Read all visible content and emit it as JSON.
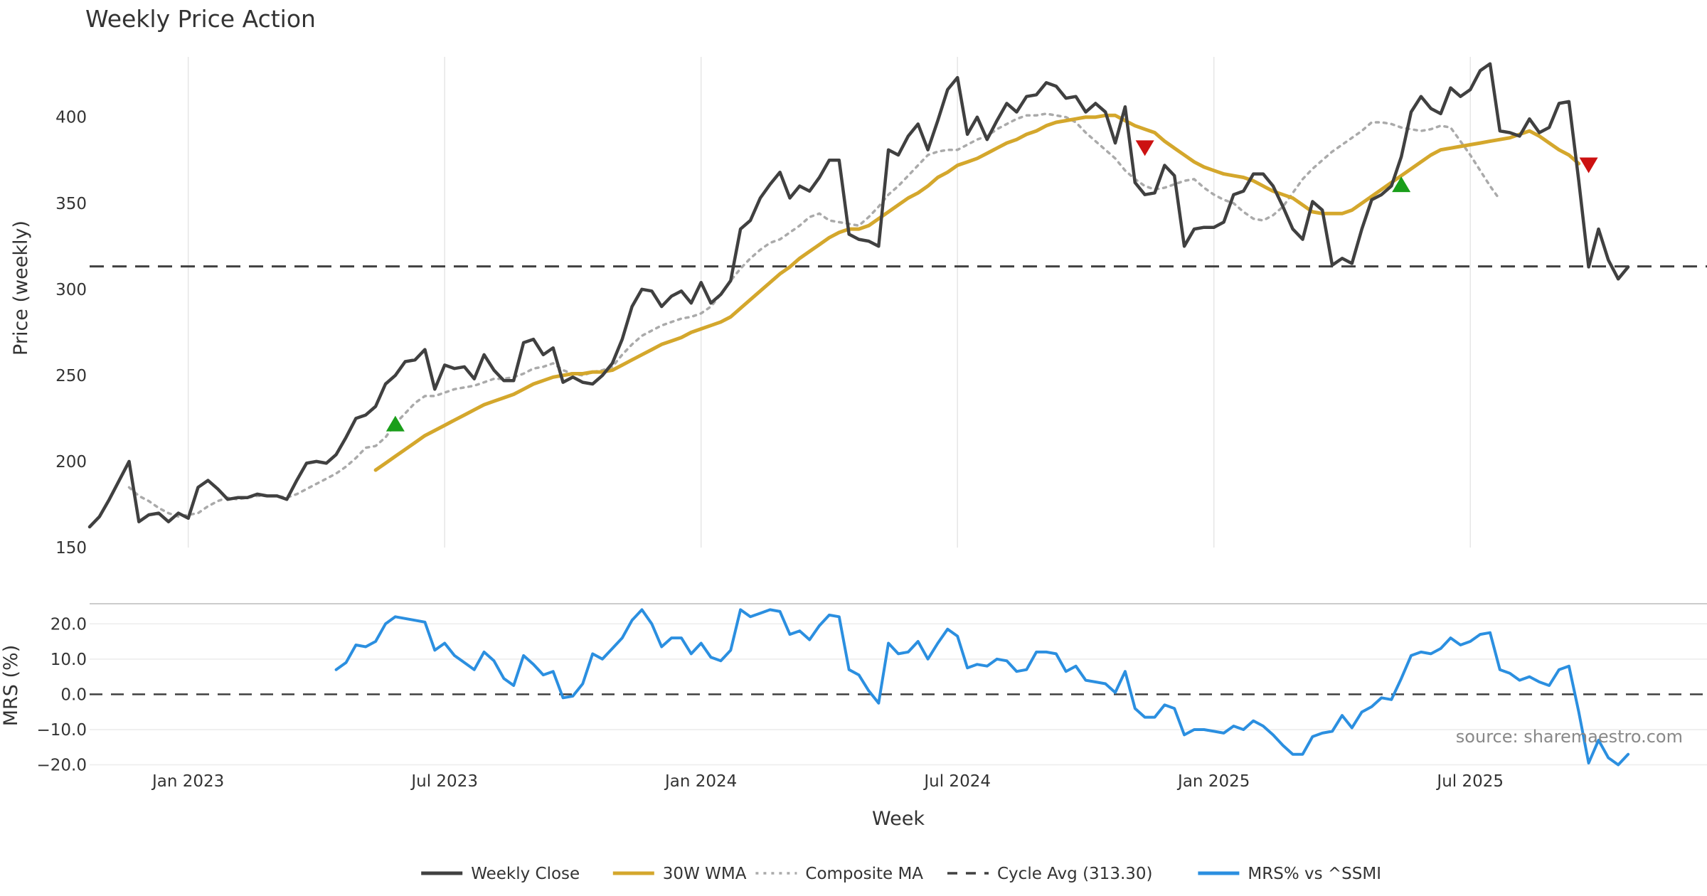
{
  "chart_data": {
    "type": "line",
    "title": "Weekly Price Action",
    "xlabel": "Week",
    "x_start_week": 0,
    "x_end_week": 164,
    "x_ticks": [
      {
        "label": "Jan 2023",
        "week": 10
      },
      {
        "label": "Jul 2023",
        "week": 36
      },
      {
        "label": "Jan 2024",
        "week": 62
      },
      {
        "label": "Jul 2024",
        "week": 88
      },
      {
        "label": "Jan 2025",
        "week": 114
      },
      {
        "label": "Jul 2025",
        "week": 140
      }
    ],
    "panels": [
      {
        "id": "price",
        "ylabel": "Price (weekly)",
        "ylim": [
          150,
          435
        ],
        "yticks": [
          150,
          200,
          250,
          300,
          350,
          400
        ],
        "ytick_labels": [
          "150",
          "200",
          "250",
          "300",
          "350",
          "400"
        ],
        "reference_line": {
          "name": "Cycle Avg (313.30)",
          "value": 313.3
        },
        "series": [
          {
            "name": "Weekly Close",
            "color": "#404040",
            "style": "solid",
            "start_week": 0,
            "values": [
              162,
              168,
              178,
              189,
              200,
              165,
              169,
              170,
              165,
              170,
              167,
              185,
              189,
              184,
              178,
              179,
              179,
              181,
              180,
              180,
              178,
              189,
              199,
              200,
              199,
              204,
              214,
              225,
              227,
              232,
              245,
              250,
              258,
              259,
              265,
              242,
              256,
              254,
              255,
              248,
              262,
              253,
              247,
              247,
              269,
              271,
              262,
              266,
              246,
              249,
              246,
              245,
              250,
              257,
              271,
              290,
              300,
              299,
              290,
              296,
              299,
              292,
              304,
              292,
              297,
              305,
              335,
              340,
              353,
              361,
              368,
              353,
              360,
              357,
              365,
              375,
              375,
              332,
              329,
              328,
              325,
              381,
              378,
              389,
              396,
              381,
              398,
              416,
              423,
              390,
              400,
              387,
              398,
              408,
              403,
              412,
              413,
              420,
              418,
              411,
              412,
              403,
              408,
              403,
              385,
              406,
              362,
              355,
              356,
              372,
              366,
              325,
              335,
              336,
              336,
              339,
              355,
              357,
              367,
              367,
              360,
              348,
              335,
              329,
              351,
              346,
              314,
              318,
              315,
              335,
              352,
              355,
              360,
              377,
              403,
              412,
              405,
              402,
              417,
              412,
              416,
              427,
              431,
              392,
              391,
              389,
              399,
              391,
              394,
              408,
              409,
              363,
              313,
              335,
              317,
              306,
              313
            ]
          },
          {
            "name": "30W WMA",
            "color": "#d4a72c",
            "style": "solid",
            "start_week": 29,
            "values": [
              195,
              199,
              203,
              207,
              211,
              215,
              218,
              221,
              224,
              227,
              230,
              233,
              235,
              237,
              239,
              242,
              245,
              247,
              249,
              250,
              251,
              251,
              252,
              252,
              253,
              256,
              259,
              262,
              265,
              268,
              270,
              272,
              275,
              277,
              279,
              281,
              284,
              289,
              294,
              299,
              304,
              309,
              313,
              318,
              322,
              326,
              330,
              333,
              335,
              335,
              337,
              341,
              345,
              349,
              353,
              356,
              360,
              365,
              368,
              372,
              374,
              376,
              379,
              382,
              385,
              387,
              390,
              392,
              395,
              397,
              398,
              399,
              400,
              400,
              401,
              401,
              398,
              395,
              393,
              391,
              386,
              382,
              378,
              374,
              371,
              369,
              367,
              366,
              365,
              363,
              360,
              357,
              355,
              353,
              349,
              345,
              344,
              344,
              344,
              346,
              350,
              354,
              358,
              362,
              366,
              370,
              374,
              378,
              381,
              382,
              383,
              384,
              385,
              386,
              387,
              388,
              390,
              392,
              389,
              385,
              381,
              378,
              373
            ]
          },
          {
            "name": "Composite MA",
            "color": "#aaaaaa",
            "style": "dotted",
            "start_week": 4,
            "values": [
              185,
              180,
              177,
              173,
              170,
              168,
              169,
              170,
              174,
              177,
              179,
              178,
              179,
              180,
              180,
              180,
              179,
              181,
              184,
              187,
              190,
              193,
              197,
              202,
              208,
              209,
              214,
              222,
              228,
              234,
              238,
              238,
              240,
              242,
              243,
              244,
              246,
              248,
              248,
              249,
              251,
              254,
              255,
              257,
              253,
              251,
              250,
              252,
              253,
              255,
              262,
              268,
              273,
              276,
              279,
              281,
              283,
              284,
              286,
              290,
              297,
              305,
              312,
              318,
              323,
              327,
              329,
              333,
              337,
              342,
              344,
              340,
              339,
              338,
              337,
              342,
              348,
              355,
              360,
              366,
              372,
              378,
              380,
              381,
              381,
              384,
              387,
              389,
              393,
              396,
              399,
              401,
              401,
              402,
              401,
              400,
              397,
              391,
              386,
              381,
              376,
              369,
              364,
              360,
              358,
              359,
              361,
              363,
              364,
              359,
              355,
              352,
              350,
              345,
              341,
              340,
              343,
              348,
              356,
              364,
              370,
              375,
              380,
              384,
              388,
              392,
              397,
              397,
              396,
              394,
              393,
              392,
              393,
              395,
              394,
              386,
              378,
              369,
              360,
              352
            ]
          }
        ],
        "signals": [
          {
            "type": "buy",
            "week": 31,
            "value": 222,
            "color": "#1a9e1a"
          },
          {
            "type": "sell",
            "week": 107,
            "value": 382,
            "color": "#cc1111"
          },
          {
            "type": "buy",
            "week": 133,
            "value": 361,
            "color": "#1a9e1a"
          },
          {
            "type": "sell",
            "week": 152,
            "value": 372,
            "color": "#cc1111"
          }
        ]
      },
      {
        "id": "mrs",
        "ylabel": "MRS (%)",
        "ylim": [
          -20.5,
          25.5
        ],
        "yticks": [
          -20,
          -10,
          0,
          10,
          20
        ],
        "ytick_labels": [
          "−20.0",
          "−10.0",
          "0.0",
          "10.0",
          "20.0"
        ],
        "reference_line": {
          "name": "zero",
          "value": 0
        },
        "series": [
          {
            "name": "MRS% vs ^SSMI",
            "color": "#2b8fe0",
            "style": "solid",
            "start_week": 25,
            "values": [
              7,
              9,
              14,
              13.5,
              15,
              20,
              22,
              21.5,
              21,
              20.5,
              12.5,
              14.5,
              11,
              9,
              7,
              12,
              9.5,
              4.5,
              2.5,
              11,
              8.5,
              5.5,
              6.5,
              -1,
              -0.5,
              3,
              11.5,
              10,
              13,
              16,
              21,
              24,
              20,
              13.5,
              16,
              16,
              11.5,
              14.5,
              10.5,
              9.5,
              12.5,
              24,
              22,
              23,
              24,
              23.5,
              17,
              18,
              15.5,
              19.5,
              22.5,
              22,
              7,
              5.5,
              1,
              -2.5,
              14.5,
              11.5,
              12,
              15,
              10,
              14.5,
              18.5,
              16.5,
              7.5,
              8.5,
              8,
              10,
              9.5,
              6.5,
              7,
              12,
              12,
              11.5,
              6.5,
              8,
              4,
              3.5,
              3,
              0.5,
              6.5,
              -4,
              -6.5,
              -6.5,
              -3,
              -4,
              -11.5,
              -10,
              -10,
              -10.5,
              -11,
              -9,
              -10,
              -7.5,
              -9,
              -11.5,
              -14.5,
              -17,
              -17,
              -12,
              -11,
              -10.5,
              -6,
              -9.5,
              -5,
              -3.5,
              -1,
              -1.5,
              4.5,
              11,
              12,
              11.5,
              13,
              16,
              14,
              15,
              17,
              17.5,
              7,
              6,
              4,
              5,
              3.5,
              2.5,
              7,
              8,
              -5,
              -19.5,
              -13,
              -18,
              -20,
              -17
            ]
          }
        ]
      }
    ],
    "legend": {
      "placement": "bottom-center",
      "entries": [
        {
          "label": "Weekly Close",
          "color": "#404040",
          "style": "solid"
        },
        {
          "label": "30W WMA",
          "color": "#d4a72c",
          "style": "solid"
        },
        {
          "label": "Composite MA",
          "color": "#aaaaaa",
          "style": "dotted"
        },
        {
          "label": "Cycle Avg (313.30)",
          "color": "#404040",
          "style": "dashed"
        },
        {
          "label": "MRS% vs ^SSMI",
          "color": "#2b8fe0",
          "style": "solid"
        }
      ]
    },
    "annotation": "source: sharemaestro.com"
  }
}
